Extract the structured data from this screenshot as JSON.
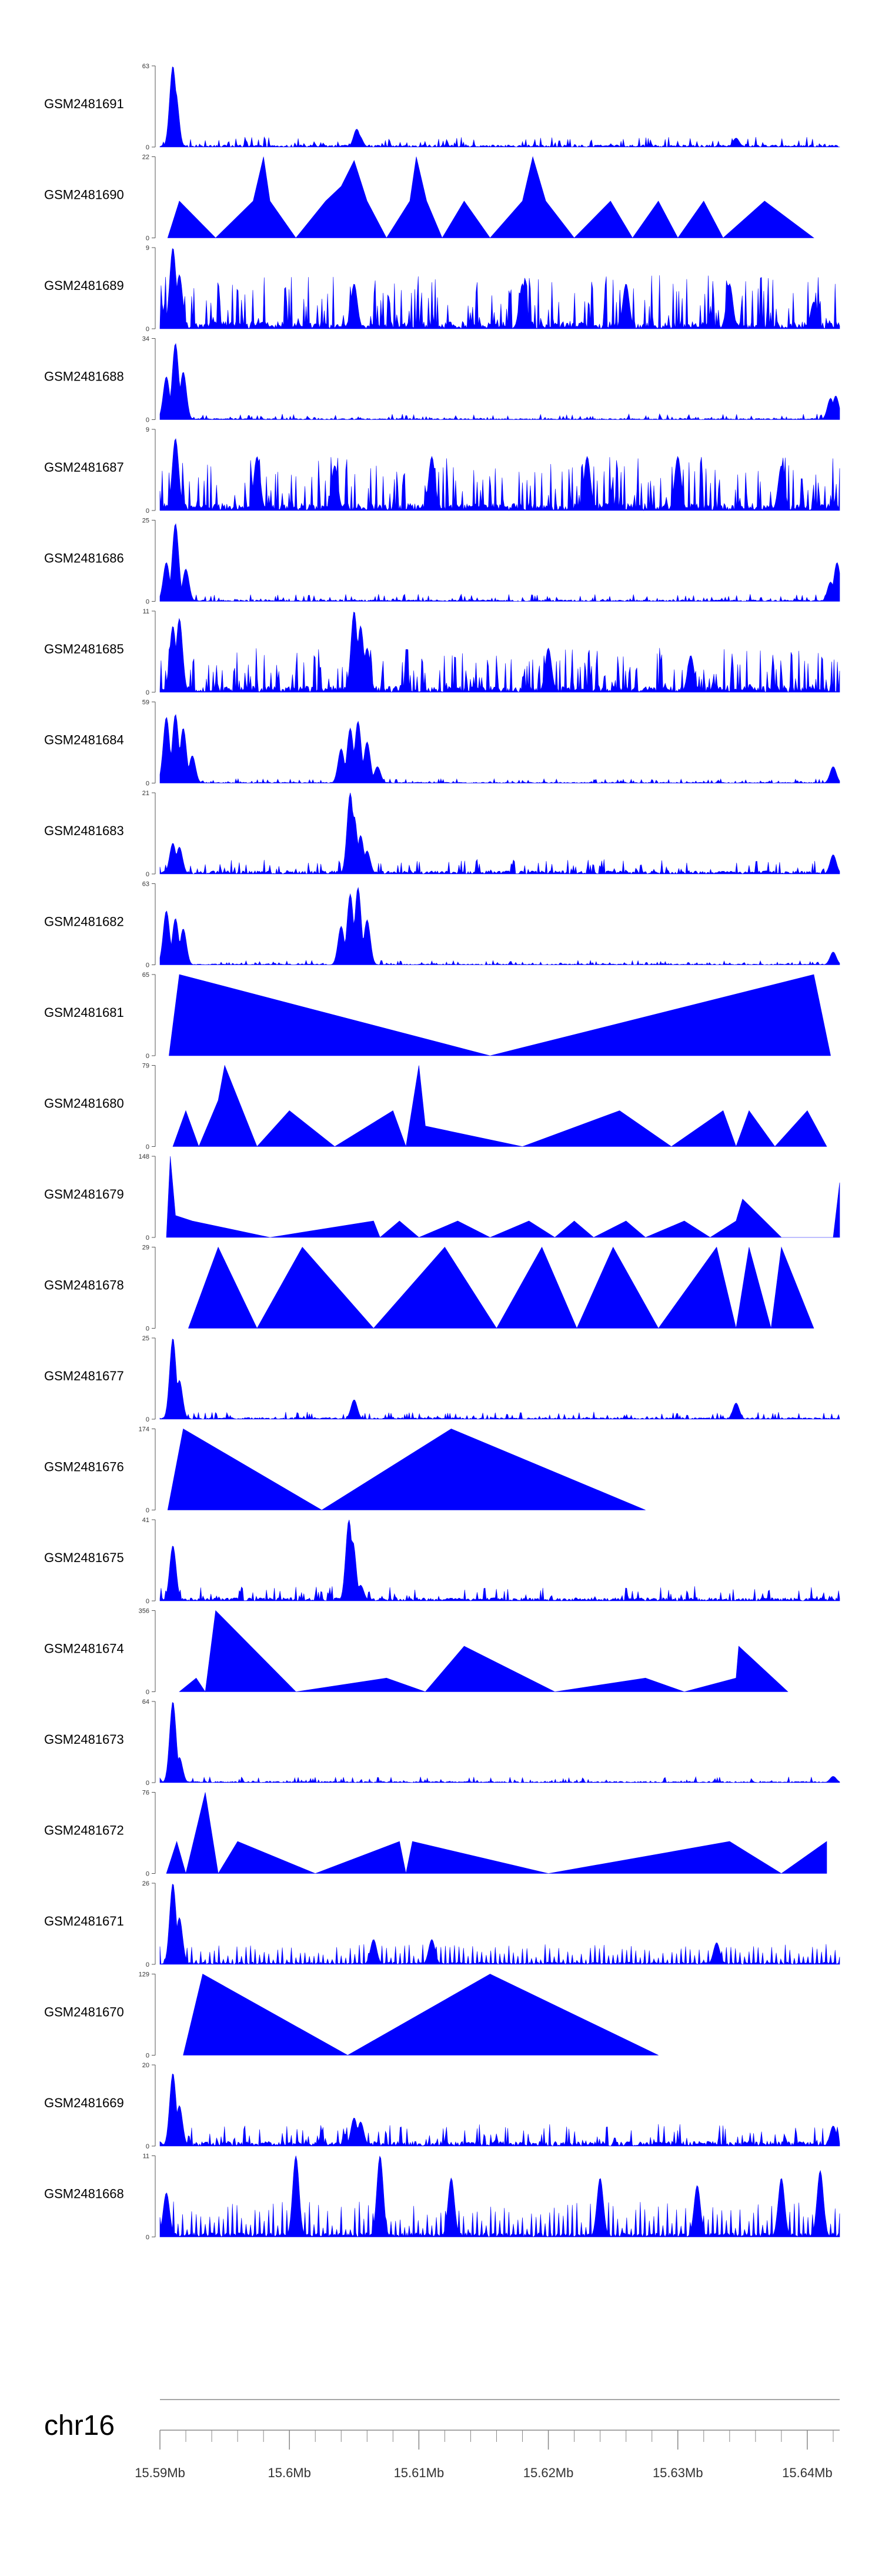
{
  "chart_data": {
    "type": "area",
    "title": "",
    "chrom": "chr16",
    "xlim": [
      15.59,
      15.6425
    ],
    "genome_axis": {
      "ticks": [
        "15.59Mb",
        "15.6Mb",
        "15.61Mb",
        "15.62Mb",
        "15.63Mb",
        "15.64Mb"
      ],
      "tick_values": [
        15.59,
        15.6,
        15.61,
        15.62,
        15.63,
        15.64
      ]
    },
    "tracks": [
      {
        "name": "GSM2481691",
        "ymax": "63",
        "color": "#0000ff",
        "peaks": [
          [
            15.591,
            63
          ],
          [
            15.5912,
            44
          ],
          [
            15.6052,
            14
          ],
          [
            15.6054,
            9
          ],
          [
            15.6345,
            7
          ]
        ],
        "noise": 0.07,
        "style": "dense"
      },
      {
        "name": "GSM2481690",
        "ymax": "22",
        "color": "#0000ff",
        "points": [
          [
            15.5906,
            0
          ],
          [
            15.5915,
            10
          ],
          [
            15.5943,
            0
          ],
          [
            15.5972,
            10
          ],
          [
            15.598,
            22
          ],
          [
            15.5985,
            10
          ],
          [
            15.6005,
            0
          ],
          [
            15.6028,
            10
          ],
          [
            15.604,
            14
          ],
          [
            15.605,
            21
          ],
          [
            15.606,
            10
          ],
          [
            15.6075,
            0
          ],
          [
            15.6093,
            10
          ],
          [
            15.6098,
            22
          ],
          [
            15.6106,
            10
          ],
          [
            15.6118,
            0
          ],
          [
            15.6135,
            10
          ],
          [
            15.6155,
            0
          ],
          [
            15.618,
            10
          ],
          [
            15.6188,
            22
          ],
          [
            15.6198,
            10
          ],
          [
            15.622,
            0
          ],
          [
            15.6248,
            10
          ],
          [
            15.6265,
            0
          ],
          [
            15.6285,
            10
          ],
          [
            15.63,
            0
          ],
          [
            15.632,
            10
          ],
          [
            15.6335,
            0
          ],
          [
            15.6367,
            10
          ],
          [
            15.6405,
            0
          ]
        ],
        "style": "shape"
      },
      {
        "name": "GSM2481689",
        "ymax": "9",
        "color": "#0000ff",
        "peaks": [
          [
            15.591,
            9
          ],
          [
            15.5915,
            6
          ],
          [
            15.605,
            5
          ],
          [
            15.618,
            5
          ],
          [
            15.626,
            5
          ],
          [
            15.634,
            5
          ],
          [
            15.6405,
            3
          ]
        ],
        "noise": 0.3,
        "style": "spiky"
      },
      {
        "name": "GSM2481688",
        "ymax": "34",
        "color": "#0000ff",
        "peaks": [
          [
            15.5905,
            18
          ],
          [
            15.5912,
            32
          ],
          [
            15.5918,
            20
          ],
          [
            15.6418,
            9
          ],
          [
            15.6422,
            10
          ]
        ],
        "noise": 0.04,
        "style": "dense"
      },
      {
        "name": "GSM2481687",
        "ymax": "9",
        "color": "#0000ff",
        "peaks": [
          [
            15.5912,
            8
          ],
          [
            15.5975,
            6
          ],
          [
            15.6035,
            5
          ],
          [
            15.611,
            6
          ],
          [
            15.623,
            6
          ],
          [
            15.63,
            6
          ],
          [
            15.638,
            5
          ]
        ],
        "noise": 0.3,
        "style": "spiky"
      },
      {
        "name": "GSM2481686",
        "ymax": "25",
        "color": "#0000ff",
        "peaks": [
          [
            15.5905,
            12
          ],
          [
            15.5912,
            24
          ],
          [
            15.592,
            10
          ],
          [
            15.6418,
            6
          ],
          [
            15.6423,
            12
          ]
        ],
        "noise": 0.05,
        "style": "dense"
      },
      {
        "name": "GSM2481685",
        "ymax": "11",
        "color": "#0000ff",
        "peaks": [
          [
            15.591,
            9
          ],
          [
            15.5915,
            10
          ],
          [
            15.605,
            11
          ],
          [
            15.6055,
            9
          ],
          [
            15.606,
            6
          ],
          [
            15.62,
            6
          ],
          [
            15.631,
            5
          ]
        ],
        "noise": 0.25,
        "style": "spiky"
      },
      {
        "name": "GSM2481684",
        "ymax": "59",
        "color": "#0000ff",
        "peaks": [
          [
            15.5905,
            48
          ],
          [
            15.5912,
            50
          ],
          [
            15.5918,
            40
          ],
          [
            15.5925,
            20
          ],
          [
            15.604,
            25
          ],
          [
            15.6047,
            40
          ],
          [
            15.6053,
            45
          ],
          [
            15.606,
            30
          ],
          [
            15.6068,
            12
          ],
          [
            15.642,
            12
          ]
        ],
        "noise": 0.03,
        "style": "dense"
      },
      {
        "name": "GSM2481683",
        "ymax": "21",
        "color": "#0000ff",
        "peaks": [
          [
            15.591,
            8
          ],
          [
            15.5915,
            7
          ],
          [
            15.6047,
            21
          ],
          [
            15.605,
            15
          ],
          [
            15.6055,
            10
          ],
          [
            15.606,
            6
          ],
          [
            15.642,
            5
          ]
        ],
        "noise": 0.1,
        "style": "dense"
      },
      {
        "name": "GSM2481682",
        "ymax": "63",
        "color": "#0000ff",
        "peaks": [
          [
            15.5905,
            42
          ],
          [
            15.5912,
            36
          ],
          [
            15.5918,
            28
          ],
          [
            15.604,
            30
          ],
          [
            15.6047,
            55
          ],
          [
            15.6053,
            60
          ],
          [
            15.606,
            35
          ],
          [
            15.642,
            10
          ]
        ],
        "noise": 0.03,
        "style": "dense"
      },
      {
        "name": "GSM2481681",
        "ymax": "65",
        "color": "#0000ff",
        "points": [
          [
            15.5907,
            0
          ],
          [
            15.5915,
            65
          ],
          [
            15.6155,
            0
          ],
          [
            15.6405,
            65
          ],
          [
            15.6418,
            0
          ]
        ],
        "style": "shape"
      },
      {
        "name": "GSM2481680",
        "ymax": "79",
        "color": "#0000ff",
        "points": [
          [
            15.591,
            0
          ],
          [
            15.592,
            35
          ],
          [
            15.593,
            0
          ],
          [
            15.5945,
            45
          ],
          [
            15.595,
            79
          ],
          [
            15.5975,
            0
          ],
          [
            15.6,
            35
          ],
          [
            15.6035,
            0
          ],
          [
            15.608,
            35
          ],
          [
            15.609,
            0
          ],
          [
            15.61,
            79
          ],
          [
            15.6105,
            20
          ],
          [
            15.618,
            0
          ],
          [
            15.6255,
            35
          ],
          [
            15.6295,
            0
          ],
          [
            15.6335,
            35
          ],
          [
            15.6345,
            0
          ],
          [
            15.6355,
            35
          ],
          [
            15.6375,
            0
          ],
          [
            15.64,
            35
          ],
          [
            15.6415,
            0
          ]
        ],
        "style": "shape"
      },
      {
        "name": "GSM2481679",
        "ymax": "148",
        "color": "#0000ff",
        "points": [
          [
            15.5905,
            0
          ],
          [
            15.5908,
            148
          ],
          [
            15.5912,
            40
          ],
          [
            15.5925,
            30
          ],
          [
            15.5985,
            0
          ],
          [
            15.6065,
            30
          ],
          [
            15.607,
            0
          ],
          [
            15.6085,
            30
          ],
          [
            15.61,
            0
          ],
          [
            15.613,
            30
          ],
          [
            15.6155,
            0
          ],
          [
            15.6185,
            30
          ],
          [
            15.6205,
            0
          ],
          [
            15.622,
            30
          ],
          [
            15.6235,
            0
          ],
          [
            15.626,
            30
          ],
          [
            15.6275,
            0
          ],
          [
            15.6305,
            30
          ],
          [
            15.6325,
            0
          ],
          [
            15.6345,
            30
          ],
          [
            15.635,
            70
          ],
          [
            15.638,
            0
          ],
          [
            15.642,
            0
          ],
          [
            15.6425,
            100
          ]
        ],
        "style": "shape"
      },
      {
        "name": "GSM2481678",
        "ymax": "29",
        "color": "#0000ff",
        "points": [
          [
            15.5922,
            0
          ],
          [
            15.5945,
            29
          ],
          [
            15.5975,
            0
          ],
          [
            15.601,
            29
          ],
          [
            15.6065,
            0
          ],
          [
            15.612,
            29
          ],
          [
            15.616,
            0
          ],
          [
            15.6195,
            29
          ],
          [
            15.6222,
            0
          ],
          [
            15.625,
            29
          ],
          [
            15.6285,
            0
          ],
          [
            15.633,
            29
          ],
          [
            15.6345,
            0
          ],
          [
            15.6355,
            29
          ],
          [
            15.6372,
            0
          ],
          [
            15.638,
            29
          ],
          [
            15.6405,
            0
          ]
        ],
        "style": "shape"
      },
      {
        "name": "GSM2481677",
        "ymax": "25",
        "color": "#0000ff",
        "peaks": [
          [
            15.591,
            25
          ],
          [
            15.5915,
            12
          ],
          [
            15.605,
            6
          ],
          [
            15.6345,
            5
          ]
        ],
        "noise": 0.05,
        "style": "dense"
      },
      {
        "name": "GSM2481676",
        "ymax": "174",
        "color": "#0000ff",
        "points": [
          [
            15.5906,
            0
          ],
          [
            15.5918,
            174
          ],
          [
            15.6025,
            0
          ],
          [
            15.6125,
            174
          ],
          [
            15.6275,
            0
          ]
        ],
        "style": "shape"
      },
      {
        "name": "GSM2481675",
        "ymax": "41",
        "color": "#0000ff",
        "peaks": [
          [
            15.591,
            28
          ],
          [
            15.6046,
            41
          ],
          [
            15.6049,
            30
          ],
          [
            15.6055,
            8
          ]
        ],
        "noise": 0.1,
        "style": "dense"
      },
      {
        "name": "GSM2481674",
        "ymax": "356",
        "color": "#0000ff",
        "points": [
          [
            15.5915,
            0
          ],
          [
            15.5928,
            60
          ],
          [
            15.5935,
            0
          ],
          [
            15.5943,
            356
          ],
          [
            15.6005,
            0
          ],
          [
            15.6075,
            60
          ],
          [
            15.6105,
            0
          ],
          [
            15.6135,
            200
          ],
          [
            15.6205,
            0
          ],
          [
            15.6275,
            60
          ],
          [
            15.6305,
            0
          ],
          [
            15.6345,
            60
          ],
          [
            15.6347,
            200
          ],
          [
            15.6385,
            0
          ]
        ],
        "style": "shape"
      },
      {
        "name": "GSM2481673",
        "ymax": "64",
        "color": "#0000ff",
        "peaks": [
          [
            15.591,
            64
          ],
          [
            15.5915,
            20
          ],
          [
            15.642,
            5
          ]
        ],
        "noise": 0.04,
        "style": "dense"
      },
      {
        "name": "GSM2481672",
        "ymax": "76",
        "color": "#0000ff",
        "points": [
          [
            15.5905,
            0
          ],
          [
            15.5913,
            30
          ],
          [
            15.592,
            0
          ],
          [
            15.5935,
            76
          ],
          [
            15.5945,
            0
          ],
          [
            15.596,
            30
          ],
          [
            15.602,
            0
          ],
          [
            15.6085,
            30
          ],
          [
            15.609,
            0
          ],
          [
            15.6095,
            30
          ],
          [
            15.62,
            0
          ],
          [
            15.634,
            30
          ],
          [
            15.638,
            0
          ],
          [
            15.6415,
            30
          ]
        ],
        "style": "shape"
      },
      {
        "name": "GSM2481671",
        "ymax": "26",
        "color": "#0000ff",
        "peaks": [
          [
            15.591,
            26
          ],
          [
            15.5915,
            15
          ],
          [
            15.6065,
            8
          ],
          [
            15.611,
            8
          ],
          [
            15.633,
            7
          ]
        ],
        "noise": 0.2,
        "style": "sawtooth"
      },
      {
        "name": "GSM2481670",
        "ymax": "129",
        "color": "#0000ff",
        "points": [
          [
            15.5918,
            0
          ],
          [
            15.5933,
            129
          ],
          [
            15.6045,
            0
          ],
          [
            15.6155,
            129
          ],
          [
            15.6285,
            0
          ]
        ],
        "style": "shape"
      },
      {
        "name": "GSM2481669",
        "ymax": "20",
        "color": "#0000ff",
        "peaks": [
          [
            15.591,
            18
          ],
          [
            15.5915,
            10
          ],
          [
            15.605,
            7
          ],
          [
            15.6055,
            6
          ],
          [
            15.642,
            5
          ]
        ],
        "noise": 0.15,
        "style": "dense"
      },
      {
        "name": "GSM2481668",
        "ymax": "11",
        "color": "#0000ff",
        "peaks": [
          [
            15.5905,
            6
          ],
          [
            15.6005,
            11
          ],
          [
            15.607,
            11
          ],
          [
            15.6125,
            8
          ],
          [
            15.624,
            8
          ],
          [
            15.6315,
            7
          ],
          [
            15.638,
            8
          ],
          [
            15.641,
            9
          ]
        ],
        "noise": 0.35,
        "style": "sawtooth"
      }
    ]
  }
}
